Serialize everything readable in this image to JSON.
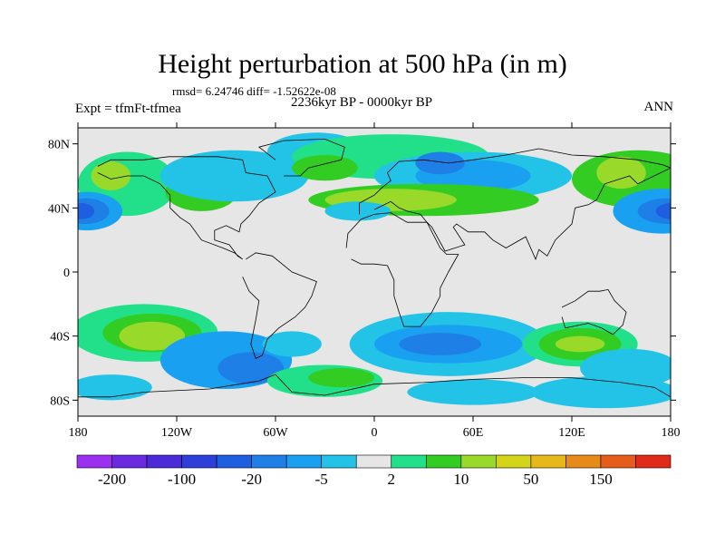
{
  "figure": {
    "title": "Height perturbation at 500 hPa (in m)",
    "stats": "rmsd= 6.24746 diff= -1.52622e-08",
    "experiment": "Expt = tfmFt-tfmea",
    "period": "2236kyr BP - 0000kyr BP",
    "season": "ANN"
  },
  "axes": {
    "lat_labels": [
      "80N",
      "40N",
      "0",
      "40S",
      "80S"
    ],
    "lon_labels": [
      "180",
      "120W",
      "60W",
      "0",
      "60E",
      "120E",
      "180"
    ]
  },
  "colorbar": {
    "colors": [
      "#9b30f0",
      "#6a2ae0",
      "#4b2ad8",
      "#2d3fd8",
      "#1e5ee0",
      "#1e7fe6",
      "#1aa0f0",
      "#22c3e6",
      "#e6e6e6",
      "#22e08a",
      "#33cc22",
      "#99d92a",
      "#d4d41a",
      "#e6b81a",
      "#e68a1a",
      "#e65c1a",
      "#e02a1a"
    ],
    "tick_labels": [
      "-200",
      "-100",
      "-20",
      "-5",
      "2",
      "10",
      "50",
      "150"
    ]
  },
  "map_colors": {
    "neutral": "#e6e6e6",
    "green_light": "#22e08a",
    "green": "#33cc22",
    "yellow_green": "#99d92a",
    "cyan": "#22c3e6",
    "blue_light": "#1aa0f0",
    "blue": "#1e7fe6",
    "blue_dark": "#1e5ee0",
    "coast": "#000000"
  }
}
